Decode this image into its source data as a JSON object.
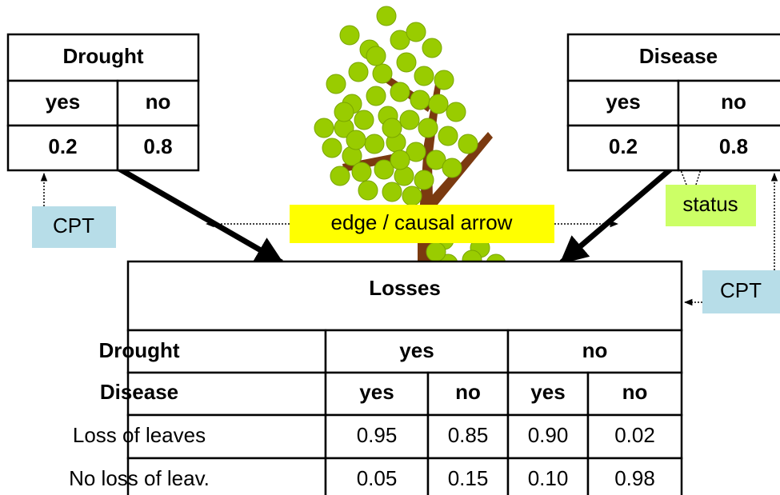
{
  "drought": {
    "title": "Drought",
    "states": [
      "yes",
      "no"
    ],
    "probs": [
      "0.2",
      "0.8"
    ]
  },
  "disease": {
    "title": "Disease",
    "states": [
      "yes",
      "no"
    ],
    "probs": [
      "0.2",
      "0.8"
    ]
  },
  "losses": {
    "title": "Losses",
    "parent_rows": [
      [
        "Drought",
        "yes",
        "no"
      ],
      [
        "Disease",
        "yes",
        "no",
        "yes",
        "no"
      ]
    ],
    "rows": [
      [
        "Loss of leaves",
        "0.95",
        "0.85",
        "0.90",
        "0.02"
      ],
      [
        "No loss of leav.",
        "0.05",
        "0.15",
        "0.10",
        "0.98"
      ]
    ]
  },
  "labels": {
    "cpt_left": "CPT",
    "cpt_right": "CPT",
    "edge": "edge / causal arrow",
    "status": "status"
  }
}
